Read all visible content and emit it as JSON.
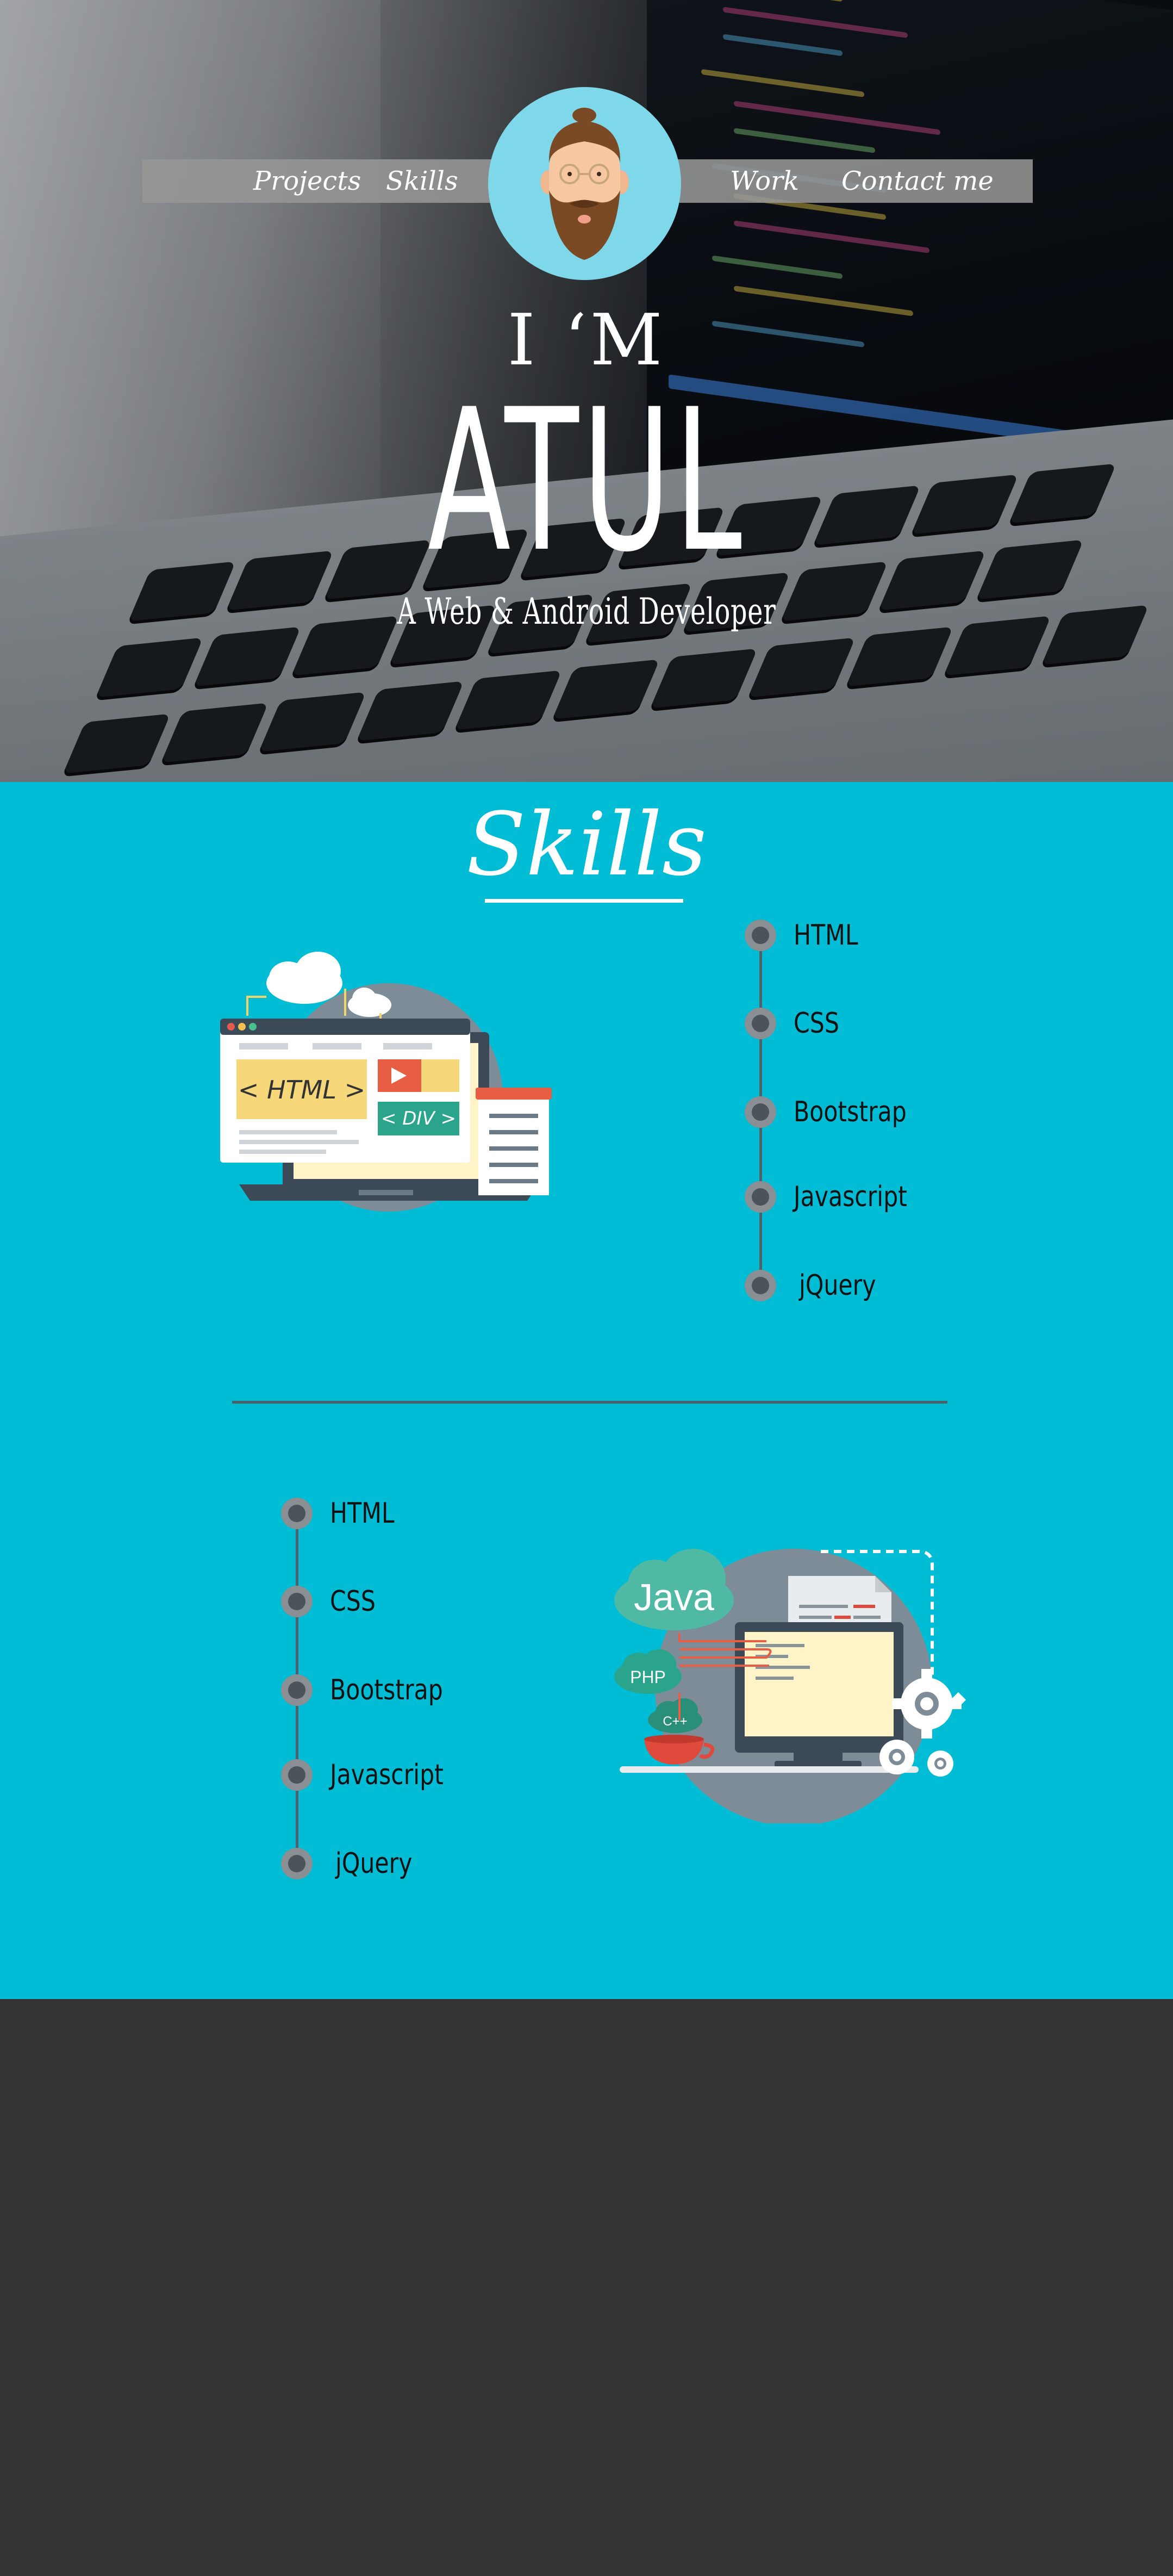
{
  "nav": {
    "links": [
      "Projects",
      "Skills",
      "Work",
      "Contact me"
    ]
  },
  "hero": {
    "intro": "I ‘M",
    "name": "ATUL",
    "tagline": "A Web & Android Developer"
  },
  "skills": {
    "title": "Skills",
    "list_one": [
      "HTML",
      "CSS",
      "Bootstrap",
      "Javascript",
      "jQuery"
    ],
    "list_two": [
      "HTML",
      "CSS",
      "Bootstrap",
      "Javascript",
      "jQuery"
    ],
    "web_illustration": {
      "html_tag": "< HTML >",
      "div_tag": "< DIV >"
    },
    "code_illustration": {
      "java": "Java",
      "php": "PHP",
      "cpp": "C++"
    }
  },
  "colors": {
    "accent": "#00bcd4",
    "footer": "#333333",
    "nav_bar": "#969696",
    "avatar_bg": "#7fd8ea"
  },
  "icons": [
    "avatar-icon",
    "web-dev-illustration",
    "code-dev-illustration",
    "timeline-dot-icon"
  ]
}
